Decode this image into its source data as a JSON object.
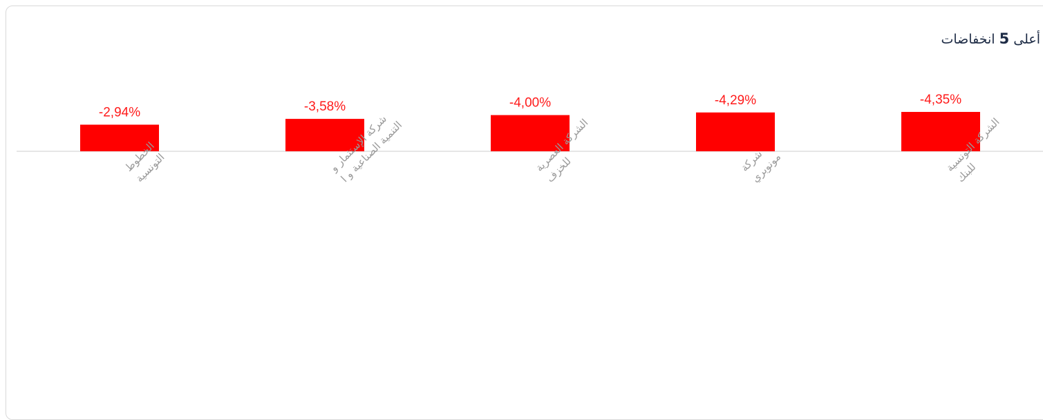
{
  "header": {
    "title_pre": "أعلى",
    "title_num": "5",
    "title_post": "انخفاضات"
  },
  "colors": {
    "bar": "#ff0000",
    "value_label": "#ff1a1a",
    "axis": "#dddddd",
    "category_label": "#9a9a9a",
    "title": "#1d2b45"
  },
  "chart_data": {
    "type": "bar",
    "title": "أعلى 5 انخفاضات",
    "xlabel": "",
    "ylabel": "",
    "ylim": [
      -5,
      0
    ],
    "grid": false,
    "legend": "none",
    "categories": [
      [
        "الخطوط",
        "التونسية"
      ],
      [
        "شركة الإستثمار و",
        "التنمية الصناعية و ا"
      ],
      [
        "الشركة العصرية",
        "للخزف"
      ],
      [
        "شركة",
        "مونوبري"
      ],
      [
        "الشركة التونسية",
        "للبنك"
      ]
    ],
    "values": [
      -2.94,
      -3.58,
      -4.0,
      -4.29,
      -4.35
    ],
    "value_labels": [
      "-2,94%",
      "-3,58%",
      "-4,00%",
      "-4,29%",
      "-4,35%"
    ]
  }
}
